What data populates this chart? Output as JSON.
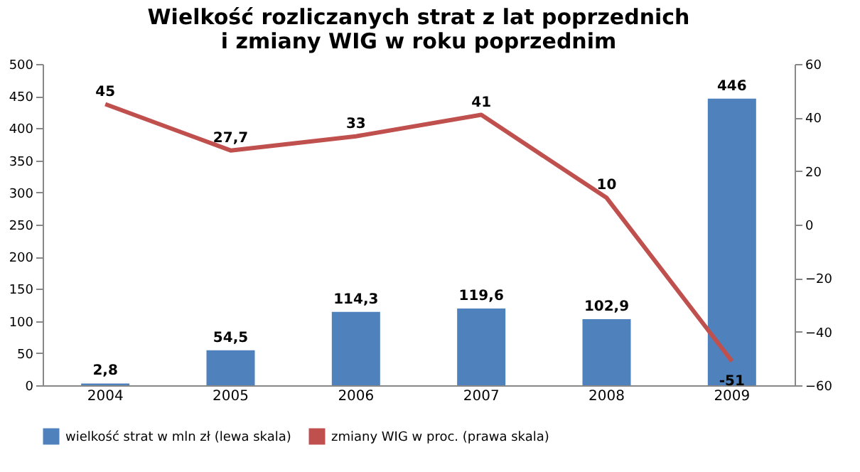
{
  "chart_data": {
    "type": "bar",
    "title": [
      "Wielkość rozliczanych strat z lat poprzednich",
      "i zmiany WIG w roku poprzednim"
    ],
    "categories": [
      "2004",
      "2005",
      "2006",
      "2007",
      "2008",
      "2009"
    ],
    "series": [
      {
        "name": "wielkość strat w mln zł (lewa skala)",
        "color": "#4f81bd",
        "values": [
          2.8,
          54.5,
          114.3,
          119.6,
          102.9,
          446
        ],
        "value_labels": [
          "2,8",
          "54,5",
          "114,3",
          "119,6",
          "102,9",
          "446"
        ]
      },
      {
        "name": "zmiany WIG w proc. (prawa skala)",
        "type": "line",
        "axis": "y2",
        "color": "#c0504d",
        "values": [
          45,
          27.7,
          33,
          41,
          10,
          -51
        ],
        "value_labels": [
          "45",
          "27,7",
          "33",
          "41",
          "10",
          "-51"
        ]
      }
    ],
    "ylim": [
      0,
      500
    ],
    "yticks": [
      0,
      50,
      100,
      150,
      200,
      250,
      300,
      350,
      400,
      450,
      500
    ],
    "y2lim": [
      -60,
      60
    ],
    "y2ticks": [
      -60,
      -40,
      -20,
      0,
      20,
      40,
      60
    ],
    "legend": "bottom",
    "grid": false
  }
}
